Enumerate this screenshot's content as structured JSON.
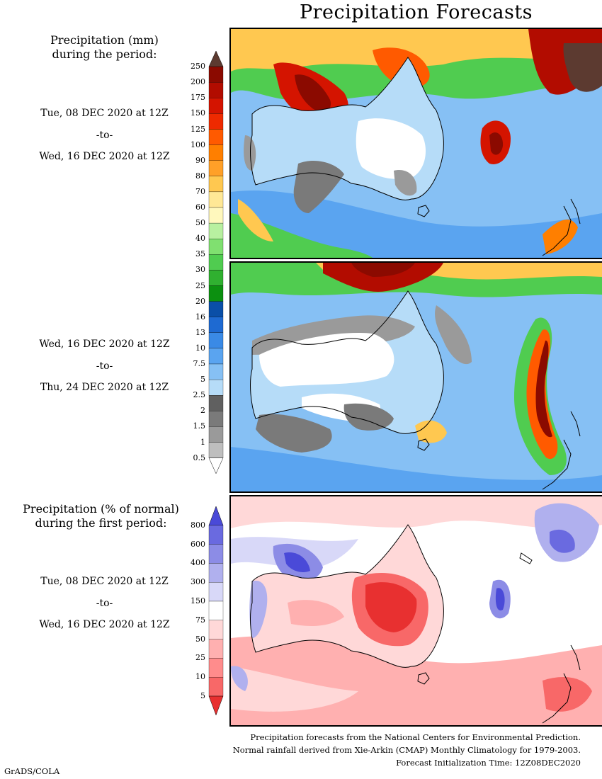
{
  "page_title": "Precipitation Forecasts",
  "panel1_header": [
    "Precipitation (mm)",
    "during the period:"
  ],
  "panel1_period": {
    "start": "Tue, 08 DEC 2020 at 12Z",
    "to": "-to-",
    "end": "Wed, 16 DEC 2020 at 12Z"
  },
  "panel2_period": {
    "start": "Wed, 16 DEC 2020 at 12Z",
    "to": "-to-",
    "end": "Thu, 24 DEC 2020 at 12Z"
  },
  "panel3_header": [
    "Precipitation (% of normal)",
    "during the first period:"
  ],
  "panel3_period": {
    "start": "Tue, 08 DEC 2020 at 12Z",
    "to": "-to-",
    "end": "Wed, 16 DEC 2020 at 12Z"
  },
  "precip_scale": {
    "labels": [
      "250",
      "200",
      "175",
      "150",
      "125",
      "100",
      "90",
      "80",
      "70",
      "60",
      "50",
      "40",
      "35",
      "30",
      "25",
      "20",
      "16",
      "13",
      "10",
      "7.5",
      "5",
      "2.5",
      "2",
      "1.5",
      "1",
      "0.5"
    ],
    "colors": [
      "#5c3a30",
      "#8b0a00",
      "#b20c00",
      "#d41400",
      "#ee2a00",
      "#ff5a00",
      "#ff7f00",
      "#ffa028",
      "#ffc850",
      "#ffe896",
      "#fff8bd",
      "#b8f0a0",
      "#80e070",
      "#50cc50",
      "#30b030",
      "#0c9010",
      "#0a4fa8",
      "#1e6ad2",
      "#3a8ae6",
      "#5aa4f0",
      "#86c0f4",
      "#b6dcf8",
      "#606060",
      "#7a7a7a",
      "#9a9a9a",
      "#bebebe",
      "#ffffff"
    ]
  },
  "percent_scale": {
    "labels": [
      "800",
      "600",
      "400",
      "300",
      "150",
      "75",
      "50",
      "25",
      "10",
      "5"
    ],
    "colors": [
      "#4a4ad8",
      "#6a6ae0",
      "#8c8ce6",
      "#b0b0ee",
      "#d8d8f8",
      "#ffffff",
      "#ffd8d8",
      "#ffb0b0",
      "#ff8c8c",
      "#f86868",
      "#e83030"
    ]
  },
  "footer": [
    "Precipitation forecasts from the National Centers for Environmental Prediction.",
    "Normal rainfall derived from Xie-Arkin (CMAP) Monthly Climatology for 1979-2003.",
    "Forecast Initialization Time: 12Z08DEC2020"
  ],
  "credit": "GrADS/COLA"
}
